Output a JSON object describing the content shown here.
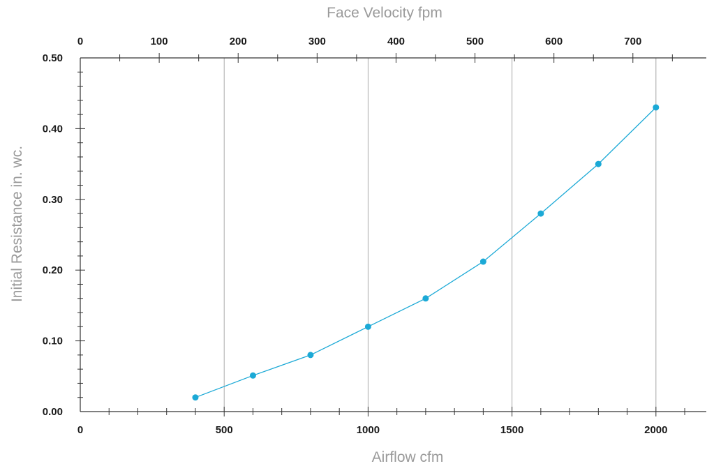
{
  "chart_data": {
    "type": "line",
    "title": "",
    "xlabel": "Airflow cfm",
    "ylabel": "Initial Resistance in. wc.",
    "x2label": "Face Velocity fpm",
    "xlim": [
      0,
      2175
    ],
    "ylim": [
      0,
      0.5
    ],
    "x2lim": [
      0,
      793
    ],
    "grid": "vertical",
    "colors": {
      "series": "#1ba9d6",
      "grid": "#a8a8a8",
      "axis": "#333333"
    },
    "x_ticks": [
      {
        "value": 0,
        "label": "0"
      },
      {
        "value": 500,
        "label": "500"
      },
      {
        "value": 1000,
        "label": "1000"
      },
      {
        "value": 1500,
        "label": "1500"
      },
      {
        "value": 2000,
        "label": "2000"
      }
    ],
    "y_ticks": [
      {
        "value": 0,
        "label": "0.00"
      },
      {
        "value": 0.1,
        "label": "0.10"
      },
      {
        "value": 0.2,
        "label": "0.20"
      },
      {
        "value": 0.3,
        "label": "0.30"
      },
      {
        "value": 0.4,
        "label": "0.40"
      },
      {
        "value": 0.5,
        "label": "0.50"
      }
    ],
    "x2_ticks": [
      {
        "value": 0,
        "label": "0"
      },
      {
        "value": 100,
        "label": "100"
      },
      {
        "value": 200,
        "label": "200"
      },
      {
        "value": 300,
        "label": "300"
      },
      {
        "value": 400,
        "label": "400"
      },
      {
        "value": 500,
        "label": "500"
      },
      {
        "value": 600,
        "label": "600"
      },
      {
        "value": 700,
        "label": "700"
      }
    ],
    "series": [
      {
        "points": [
          {
            "x": 400,
            "y": 0.02
          },
          {
            "x": 600,
            "y": 0.051
          },
          {
            "x": 800,
            "y": 0.08
          },
          {
            "x": 1000,
            "y": 0.12
          },
          {
            "x": 1200,
            "y": 0.16
          },
          {
            "x": 1400,
            "y": 0.212
          },
          {
            "x": 1600,
            "y": 0.28
          },
          {
            "x": 1800,
            "y": 0.35
          },
          {
            "x": 2000,
            "y": 0.43
          }
        ]
      }
    ]
  }
}
